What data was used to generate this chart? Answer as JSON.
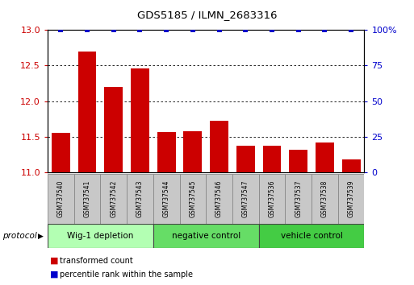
{
  "title": "GDS5185 / ILMN_2683316",
  "samples": [
    "GSM737540",
    "GSM737541",
    "GSM737542",
    "GSM737543",
    "GSM737544",
    "GSM737545",
    "GSM737546",
    "GSM737547",
    "GSM737536",
    "GSM737537",
    "GSM737538",
    "GSM737539"
  ],
  "red_values": [
    11.56,
    12.7,
    12.2,
    12.46,
    11.57,
    11.58,
    11.72,
    11.37,
    11.37,
    11.32,
    11.42,
    11.18
  ],
  "blue_values": [
    100,
    100,
    100,
    100,
    100,
    100,
    100,
    100,
    100,
    100,
    100,
    100
  ],
  "ylim_left": [
    11,
    13
  ],
  "ylim_right": [
    0,
    100
  ],
  "yticks_left": [
    11,
    11.5,
    12,
    12.5,
    13
  ],
  "yticks_right": [
    0,
    25,
    50,
    75,
    100
  ],
  "groups": [
    {
      "label": "Wig-1 depletion",
      "start": 0,
      "end": 4,
      "color": "#b3ffb3"
    },
    {
      "label": "negative control",
      "start": 4,
      "end": 8,
      "color": "#66dd66"
    },
    {
      "label": "vehicle control",
      "start": 8,
      "end": 12,
      "color": "#44cc44"
    }
  ],
  "protocol_label": "protocol",
  "bar_color": "#cc0000",
  "blue_color": "#0000cc",
  "bar_bottom": 11,
  "sample_box_color": "#c8c8c8",
  "legend_items": [
    {
      "color": "#cc0000",
      "label": "transformed count"
    },
    {
      "color": "#0000cc",
      "label": "percentile rank within the sample"
    }
  ]
}
